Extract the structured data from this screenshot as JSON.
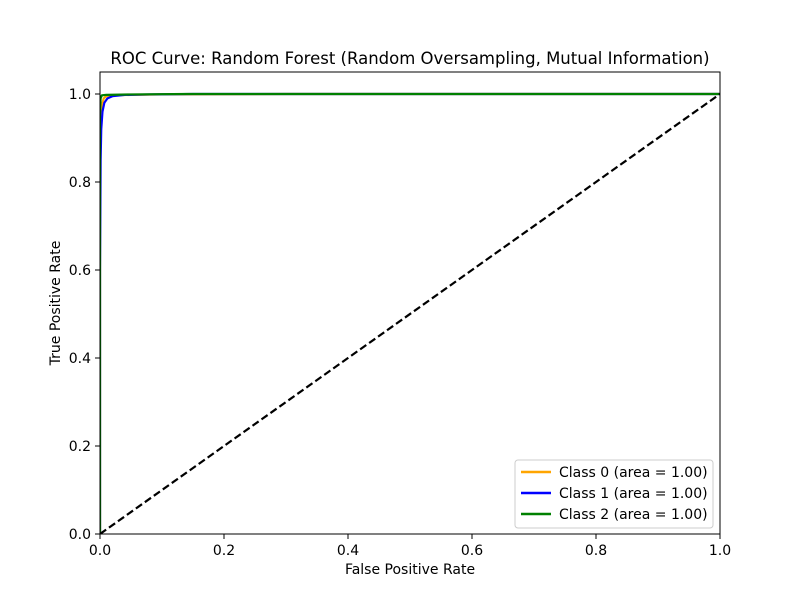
{
  "chart_data": {
    "type": "line",
    "title": "ROC Curve: Random Forest (Random Oversampling, Mutual Information)",
    "xlabel": "False Positive Rate",
    "ylabel": "True Positive Rate",
    "xlim": [
      0.0,
      1.0
    ],
    "ylim": [
      0.0,
      1.05
    ],
    "xticks": [
      "0.0",
      "0.2",
      "0.4",
      "0.6",
      "0.8",
      "1.0"
    ],
    "yticks": [
      "0.0",
      "0.2",
      "0.4",
      "0.6",
      "0.8",
      "1.0"
    ],
    "grid": false,
    "legend_position": "lower-right",
    "series": [
      {
        "name": "Class 0 (area = 1.00)",
        "color": "#ffa500",
        "x": [
          0.0,
          0.0,
          0.001,
          0.003,
          0.006,
          0.01,
          0.02,
          0.05,
          0.1,
          0.3,
          0.6,
          1.0
        ],
        "y": [
          0.0,
          0.8,
          0.93,
          0.975,
          0.99,
          0.995,
          0.997,
          0.998,
          0.999,
          1.0,
          1.0,
          1.0
        ]
      },
      {
        "name": "Class 1 (area = 1.00)",
        "color": "#0000ff",
        "x": [
          0.0,
          0.0,
          0.001,
          0.002,
          0.004,
          0.007,
          0.012,
          0.02,
          0.04,
          0.08,
          0.15,
          0.4,
          1.0
        ],
        "y": [
          0.0,
          0.6,
          0.85,
          0.92,
          0.96,
          0.98,
          0.99,
          0.995,
          0.998,
          0.999,
          1.0,
          1.0,
          1.0
        ]
      },
      {
        "name": "Class 2 (area = 1.00)",
        "color": "#008000",
        "x": [
          0.0,
          0.0,
          0.001,
          0.003,
          0.01,
          0.05,
          0.14,
          0.5,
          1.0
        ],
        "y": [
          0.0,
          0.95,
          0.99,
          0.997,
          0.998,
          0.999,
          1.0,
          1.0,
          1.0
        ]
      }
    ],
    "reference_line": {
      "color": "#000000",
      "style": "dashed",
      "x": [
        0.0,
        1.0
      ],
      "y": [
        0.0,
        1.0
      ]
    }
  }
}
